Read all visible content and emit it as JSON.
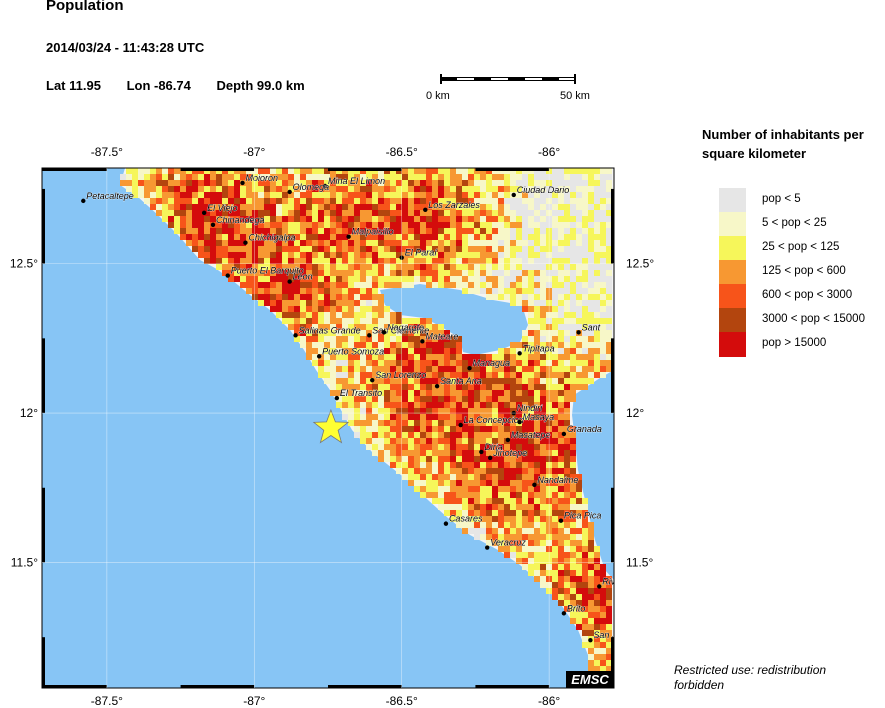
{
  "header": {
    "title": "Population",
    "datetime": "2014/03/24 - 11:43:28 UTC",
    "lat": "Lat 11.95",
    "lon": "Lon -86.74",
    "depth": "Depth  99.0 km"
  },
  "scale_bar": {
    "left_label": "0 km",
    "right_label": "50 km"
  },
  "map": {
    "bounds": {
      "lon_min": -87.72,
      "lon_max": -85.78,
      "lat_min": 11.08,
      "lat_max": 12.82
    },
    "lon_ticks": [
      -87.5,
      -87,
      -86.5,
      -86
    ],
    "lat_ticks": [
      12.5,
      12,
      11.5
    ],
    "lon_tick_labels": [
      "-87.5°",
      "-87°",
      "-86.5°",
      "-86°"
    ],
    "lat_tick_labels": [
      "12.5°",
      "12°",
      "11.5°"
    ],
    "epicenter": {
      "lon": -86.74,
      "lat": 11.95
    },
    "watermark": "EMSC",
    "colors": {
      "ocean": "#87c5f5",
      "land": "#f4f4f4",
      "epicenter": "#ffff33"
    },
    "cities": [
      {
        "name": "Petacaltepe",
        "lon": -87.58,
        "lat": 12.71
      },
      {
        "name": "Moioron",
        "lon": -87.04,
        "lat": 12.77
      },
      {
        "name": "Mina El Limon",
        "lon": -86.76,
        "lat": 12.76
      },
      {
        "name": "Olomega",
        "lon": -86.88,
        "lat": 12.74
      },
      {
        "name": "Ciudad Dario",
        "lon": -86.12,
        "lat": 12.73
      },
      {
        "name": "El Viejo",
        "lon": -87.17,
        "lat": 12.67
      },
      {
        "name": "Los Zarzales",
        "lon": -86.42,
        "lat": 12.68
      },
      {
        "name": "Chinandega",
        "lon": -87.14,
        "lat": 12.63
      },
      {
        "name": "Malpaisillo",
        "lon": -86.68,
        "lat": 12.59
      },
      {
        "name": "Chichigalpa",
        "lon": -87.03,
        "lat": 12.57
      },
      {
        "name": "El Paraí",
        "lon": -86.5,
        "lat": 12.52
      },
      {
        "name": "Puerto El Barquito",
        "lon": -87.09,
        "lat": 12.46
      },
      {
        "name": "Leon",
        "lon": -86.88,
        "lat": 12.44
      },
      {
        "name": "Sant",
        "lon": -85.9,
        "lat": 12.27
      },
      {
        "name": "Salinas Grande",
        "lon": -86.86,
        "lat": 12.26
      },
      {
        "name": "San Clemente",
        "lon": -86.61,
        "lat": 12.26
      },
      {
        "name": "Nagarote",
        "lon": -86.56,
        "lat": 12.27
      },
      {
        "name": "Mateare",
        "lon": -86.43,
        "lat": 12.24
      },
      {
        "name": "Tipitapa",
        "lon": -86.1,
        "lat": 12.2
      },
      {
        "name": "Puerto Somoza",
        "lon": -86.78,
        "lat": 12.19
      },
      {
        "name": "Managua",
        "lon": -86.27,
        "lat": 12.15
      },
      {
        "name": "San Lorenzo",
        "lon": -86.6,
        "lat": 12.11
      },
      {
        "name": "Santa Ana",
        "lon": -86.38,
        "lat": 12.09
      },
      {
        "name": "El Transito",
        "lon": -86.72,
        "lat": 12.05
      },
      {
        "name": "Nindiri",
        "lon": -86.12,
        "lat": 12.0
      },
      {
        "name": "La Concepcion",
        "lon": -86.3,
        "lat": 11.96
      },
      {
        "name": "Masaya",
        "lon": -86.1,
        "lat": 11.97
      },
      {
        "name": "Granada",
        "lon": -85.95,
        "lat": 11.93
      },
      {
        "name": "Masatepe",
        "lon": -86.14,
        "lat": 11.91
      },
      {
        "name": "Diria",
        "lon": -86.23,
        "lat": 11.87
      },
      {
        "name": "Jinotepe",
        "lon": -86.2,
        "lat": 11.85
      },
      {
        "name": "Nandaime",
        "lon": -86.05,
        "lat": 11.76
      },
      {
        "name": "Casares",
        "lon": -86.35,
        "lat": 11.63
      },
      {
        "name": "Pica Pica",
        "lon": -85.96,
        "lat": 11.64
      },
      {
        "name": "Veracruz",
        "lon": -86.21,
        "lat": 11.55
      },
      {
        "name": "Rivas",
        "lon": -85.83,
        "lat": 11.42
      },
      {
        "name": "Brito",
        "lon": -85.95,
        "lat": 11.33
      },
      {
        "name": "San Juan del Sur",
        "lon": -85.86,
        "lat": 11.24
      }
    ]
  },
  "legend": {
    "title": "Number of inhabitants per square kilometer",
    "items": [
      {
        "label": "pop < 5",
        "color": "#e6e6e6"
      },
      {
        "label": "5 < pop < 25",
        "color": "#f7f7c8"
      },
      {
        "label": "25 < pop < 125",
        "color": "#f6f65a"
      },
      {
        "label": "125 < pop < 600",
        "color": "#f79832"
      },
      {
        "label": "600 < pop < 3000",
        "color": "#f7541a"
      },
      {
        "label": "3000 < pop < 15000",
        "color": "#b3450e"
      },
      {
        "label": "pop > 15000",
        "color": "#d40c0c"
      }
    ]
  },
  "footer": {
    "restricted": "Restricted use: redistribution forbidden"
  }
}
